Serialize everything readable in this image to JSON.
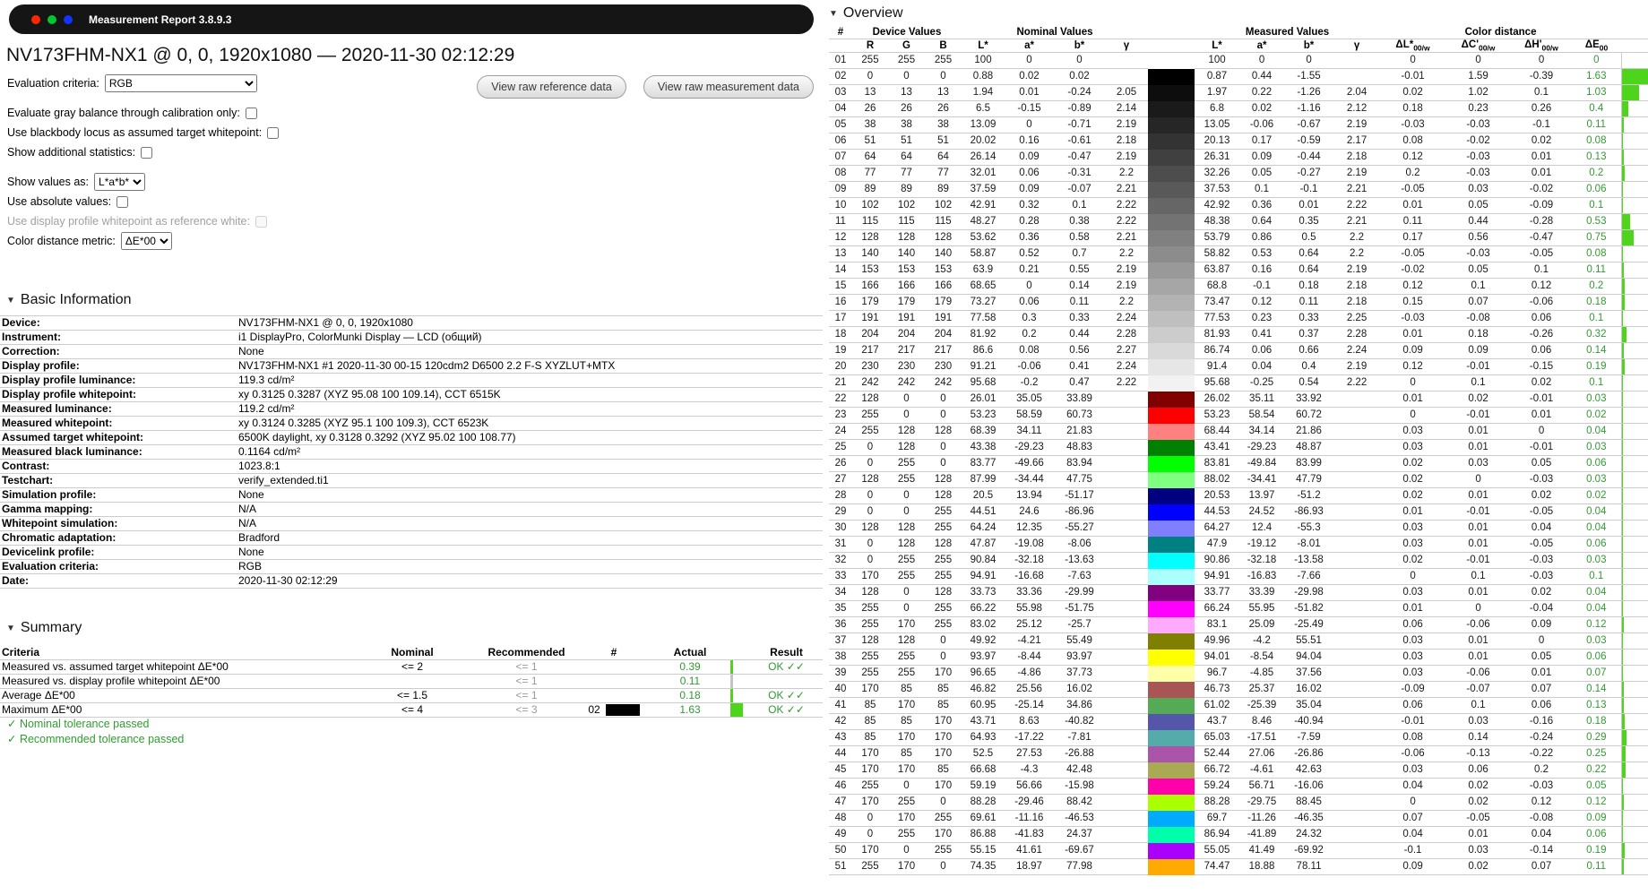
{
  "window": {
    "title": "Measurement Report 3.8.9.3"
  },
  "header": {
    "title": "NV173FHM-NX1 @ 0, 0, 1920x1080 — 2020-11-30 02:12:29"
  },
  "controls": {
    "evaluation_criteria_label": "Evaluation criteria:",
    "evaluation_criteria_value": "RGB",
    "buttons": [
      "View raw reference data",
      "View raw measurement data"
    ],
    "checkboxes": [
      {
        "label": "Evaluate gray balance through calibration only:",
        "checked": false,
        "disabled": false
      },
      {
        "label": "Use blackbody locus as assumed target whitepoint:",
        "checked": false,
        "disabled": false
      },
      {
        "label": "Show additional statistics:",
        "checked": false,
        "disabled": false
      },
      {
        "label": "Use absolute values:",
        "checked": false,
        "disabled": false
      },
      {
        "label": "Use display profile whitepoint as reference white:",
        "checked": false,
        "disabled": true
      }
    ],
    "show_values_as_label": "Show values as:",
    "show_values_as_value": "L*a*b*",
    "color_distance_metric_label": "Color distance metric:",
    "color_distance_metric_value": "ΔE*00"
  },
  "basic_information": {
    "title": "Basic Information",
    "rows": [
      {
        "label": "Device:",
        "value": "NV173FHM-NX1 @ 0, 0, 1920x1080"
      },
      {
        "label": "Instrument:",
        "value": "i1 DisplayPro, ColorMunki Display — LCD (общий)"
      },
      {
        "label": "Correction:",
        "value": "None"
      },
      {
        "label": "Display profile:",
        "value": "NV173FHM-NX1 #1 2020-11-30 00-15 120cdm2 D6500 2.2 F-S XYZLUT+MTX"
      },
      {
        "label": "Display profile luminance:",
        "value": "119.3 cd/m²"
      },
      {
        "label": "Display profile whitepoint:",
        "value": "xy 0.3125 0.3287 (XYZ 95.08 100 109.14), CCT 6515K"
      },
      {
        "label": "Measured luminance:",
        "value": "119.2 cd/m²"
      },
      {
        "label": "Measured whitepoint:",
        "value": "xy 0.3124 0.3285 (XYZ 95.1 100 109.3), CCT 6523K"
      },
      {
        "label": "Assumed target whitepoint:",
        "value": "6500K daylight, xy 0.3128 0.3292 (XYZ 95.02 100 108.77)"
      },
      {
        "label": "Measured black luminance:",
        "value": "0.1164 cd/m²"
      },
      {
        "label": "Contrast:",
        "value": "1023.8:1"
      },
      {
        "label": "Testchart:",
        "value": "verify_extended.ti1"
      },
      {
        "label": "Simulation profile:",
        "value": "None"
      },
      {
        "label": "Gamma mapping:",
        "value": "N/A"
      },
      {
        "label": "Whitepoint simulation:",
        "value": "N/A"
      },
      {
        "label": "Chromatic adaptation:",
        "value": "Bradford"
      },
      {
        "label": "Devicelink profile:",
        "value": "None"
      },
      {
        "label": "Evaluation criteria:",
        "value": "RGB"
      },
      {
        "label": "Date:",
        "value": "2020-11-30 02:12:29"
      }
    ]
  },
  "summary": {
    "title": "Summary",
    "headers": {
      "criteria": "Criteria",
      "nominal": "Nominal",
      "recommended": "Recommended",
      "num": "#",
      "actual": "Actual",
      "result": "Result"
    },
    "rows": [
      {
        "criteria": "Measured vs. assumed target whitepoint ΔE*00",
        "nominal": "<= 2",
        "recommended": "<= 1",
        "num": "",
        "patch": null,
        "actual": "0.39",
        "bar": "green",
        "result": "OK ✓✓"
      },
      {
        "criteria": "Measured vs. display profile whitepoint ΔE*00",
        "nominal": "",
        "recommended": "<= 1",
        "num": "",
        "patch": null,
        "actual": "0.11",
        "bar": "gray",
        "result": ""
      },
      {
        "criteria": "Average ΔE*00",
        "nominal": "<= 1.5",
        "recommended": "<= 1",
        "num": "",
        "patch": null,
        "actual": "0.18",
        "bar": "green",
        "result": "OK ✓✓"
      },
      {
        "criteria": "Maximum ΔE*00",
        "nominal": "<= 4",
        "recommended": "<= 3",
        "num": "02",
        "patch": "#000000",
        "actual": "1.63",
        "bar": "green",
        "result": "OK ✓✓"
      }
    ],
    "footnotes": [
      "✓ Nominal tolerance passed",
      "✓ Recommended tolerance passed"
    ]
  },
  "overview": {
    "title": "Overview",
    "group_headers": {
      "num": "#",
      "device": "Device Values",
      "nominal": "Nominal Values",
      "measured": "Measured Values",
      "distance": "Color distance"
    },
    "sub_labels": [
      "R",
      "G",
      "B",
      "L*",
      "a*",
      "b*",
      "γ"
    ],
    "delta_headers": [
      {
        "base": "ΔL*",
        "sub": "00/w"
      },
      {
        "base": "ΔC'",
        "sub": "00/w"
      },
      {
        "base": "ΔH'",
        "sub": "00/w"
      },
      {
        "base": "ΔE",
        "sub": "00"
      }
    ],
    "max_de": 1.63,
    "rows": [
      [
        "01",
        "255",
        "255",
        "255",
        "100",
        "0",
        "0",
        "",
        "100",
        "0",
        "0",
        "",
        "0",
        "0",
        "0",
        "0"
      ],
      [
        "02",
        "0",
        "0",
        "0",
        "0.88",
        "0.02",
        "0.02",
        "",
        "0.87",
        "0.44",
        "-1.55",
        "",
        "-0.01",
        "1.59",
        "-0.39",
        "1.63"
      ],
      [
        "03",
        "13",
        "13",
        "13",
        "1.94",
        "0.01",
        "-0.24",
        "2.05",
        "1.97",
        "0.22",
        "-1.26",
        "2.04",
        "0.02",
        "1.02",
        "0.1",
        "1.03"
      ],
      [
        "04",
        "26",
        "26",
        "26",
        "6.5",
        "-0.15",
        "-0.89",
        "2.14",
        "6.8",
        "0.02",
        "-1.16",
        "2.12",
        "0.18",
        "0.23",
        "0.26",
        "0.4"
      ],
      [
        "05",
        "38",
        "38",
        "38",
        "13.09",
        "0",
        "-0.71",
        "2.19",
        "13.05",
        "-0.06",
        "-0.67",
        "2.19",
        "-0.03",
        "-0.03",
        "-0.1",
        "0.11"
      ],
      [
        "06",
        "51",
        "51",
        "51",
        "20.02",
        "0.16",
        "-0.61",
        "2.18",
        "20.13",
        "0.17",
        "-0.59",
        "2.17",
        "0.08",
        "-0.02",
        "0.02",
        "0.08"
      ],
      [
        "07",
        "64",
        "64",
        "64",
        "26.14",
        "0.09",
        "-0.47",
        "2.19",
        "26.31",
        "0.09",
        "-0.44",
        "2.18",
        "0.12",
        "-0.03",
        "0.01",
        "0.13"
      ],
      [
        "08",
        "77",
        "77",
        "77",
        "32.01",
        "0.06",
        "-0.31",
        "2.2",
        "32.26",
        "0.05",
        "-0.27",
        "2.19",
        "0.2",
        "-0.03",
        "0.01",
        "0.2"
      ],
      [
        "09",
        "89",
        "89",
        "89",
        "37.59",
        "0.09",
        "-0.07",
        "2.21",
        "37.53",
        "0.1",
        "-0.1",
        "2.21",
        "-0.05",
        "0.03",
        "-0.02",
        "0.06"
      ],
      [
        "10",
        "102",
        "102",
        "102",
        "42.91",
        "0.32",
        "0.1",
        "2.22",
        "42.92",
        "0.36",
        "0.01",
        "2.22",
        "0.01",
        "0.05",
        "-0.09",
        "0.1"
      ],
      [
        "11",
        "115",
        "115",
        "115",
        "48.27",
        "0.28",
        "0.38",
        "2.22",
        "48.38",
        "0.64",
        "0.35",
        "2.21",
        "0.11",
        "0.44",
        "-0.28",
        "0.53"
      ],
      [
        "12",
        "128",
        "128",
        "128",
        "53.62",
        "0.36",
        "0.58",
        "2.21",
        "53.79",
        "0.86",
        "0.5",
        "2.2",
        "0.17",
        "0.56",
        "-0.47",
        "0.75"
      ],
      [
        "13",
        "140",
        "140",
        "140",
        "58.87",
        "0.52",
        "0.7",
        "2.2",
        "58.82",
        "0.53",
        "0.64",
        "2.2",
        "-0.05",
        "-0.03",
        "-0.05",
        "0.08"
      ],
      [
        "14",
        "153",
        "153",
        "153",
        "63.9",
        "0.21",
        "0.55",
        "2.19",
        "63.87",
        "0.16",
        "0.64",
        "2.19",
        "-0.02",
        "0.05",
        "0.1",
        "0.11"
      ],
      [
        "15",
        "166",
        "166",
        "166",
        "68.65",
        "0",
        "0.14",
        "2.19",
        "68.8",
        "-0.1",
        "0.18",
        "2.18",
        "0.12",
        "0.1",
        "0.12",
        "0.2"
      ],
      [
        "16",
        "179",
        "179",
        "179",
        "73.27",
        "0.06",
        "0.11",
        "2.2",
        "73.47",
        "0.12",
        "0.11",
        "2.18",
        "0.15",
        "0.07",
        "-0.06",
        "0.18"
      ],
      [
        "17",
        "191",
        "191",
        "191",
        "77.58",
        "0.3",
        "0.33",
        "2.24",
        "77.53",
        "0.23",
        "0.33",
        "2.25",
        "-0.03",
        "-0.08",
        "0.06",
        "0.1"
      ],
      [
        "18",
        "204",
        "204",
        "204",
        "81.92",
        "0.2",
        "0.44",
        "2.28",
        "81.93",
        "0.41",
        "0.37",
        "2.28",
        "0.01",
        "0.18",
        "-0.26",
        "0.32"
      ],
      [
        "19",
        "217",
        "217",
        "217",
        "86.6",
        "0.08",
        "0.56",
        "2.27",
        "86.74",
        "0.06",
        "0.66",
        "2.24",
        "0.09",
        "0.09",
        "0.06",
        "0.14"
      ],
      [
        "20",
        "230",
        "230",
        "230",
        "91.21",
        "-0.06",
        "0.41",
        "2.24",
        "91.4",
        "0.04",
        "0.4",
        "2.19",
        "0.12",
        "-0.01",
        "-0.15",
        "0.19"
      ],
      [
        "21",
        "242",
        "242",
        "242",
        "95.68",
        "-0.2",
        "0.47",
        "2.22",
        "95.68",
        "-0.25",
        "0.54",
        "2.22",
        "0",
        "0.1",
        "0.02",
        "0.1"
      ],
      [
        "22",
        "128",
        "0",
        "0",
        "26.01",
        "35.05",
        "33.89",
        "",
        "26.02",
        "35.11",
        "33.92",
        "",
        "0.01",
        "0.02",
        "-0.01",
        "0.03"
      ],
      [
        "23",
        "255",
        "0",
        "0",
        "53.23",
        "58.59",
        "60.73",
        "",
        "53.23",
        "58.54",
        "60.72",
        "",
        "0",
        "-0.01",
        "0.01",
        "0.02"
      ],
      [
        "24",
        "255",
        "128",
        "128",
        "68.39",
        "34.11",
        "21.83",
        "",
        "68.44",
        "34.14",
        "21.86",
        "",
        "0.03",
        "0.01",
        "0",
        "0.04"
      ],
      [
        "25",
        "0",
        "128",
        "0",
        "43.38",
        "-29.23",
        "48.83",
        "",
        "43.41",
        "-29.23",
        "48.87",
        "",
        "0.03",
        "0.01",
        "-0.01",
        "0.03"
      ],
      [
        "26",
        "0",
        "255",
        "0",
        "83.77",
        "-49.66",
        "83.94",
        "",
        "83.81",
        "-49.84",
        "83.99",
        "",
        "0.02",
        "0.03",
        "0.05",
        "0.06"
      ],
      [
        "27",
        "128",
        "255",
        "128",
        "87.99",
        "-34.44",
        "47.75",
        "",
        "88.02",
        "-34.41",
        "47.79",
        "",
        "0.02",
        "0",
        "-0.03",
        "0.03"
      ],
      [
        "28",
        "0",
        "0",
        "128",
        "20.5",
        "13.94",
        "-51.17",
        "",
        "20.53",
        "13.97",
        "-51.2",
        "",
        "0.02",
        "0.01",
        "0.02",
        "0.02"
      ],
      [
        "29",
        "0",
        "0",
        "255",
        "44.51",
        "24.6",
        "-86.96",
        "",
        "44.53",
        "24.52",
        "-86.93",
        "",
        "0.01",
        "-0.01",
        "-0.05",
        "0.04"
      ],
      [
        "30",
        "128",
        "128",
        "255",
        "64.24",
        "12.35",
        "-55.27",
        "",
        "64.27",
        "12.4",
        "-55.3",
        "",
        "0.03",
        "0.01",
        "0.04",
        "0.04"
      ],
      [
        "31",
        "0",
        "128",
        "128",
        "47.87",
        "-19.08",
        "-8.06",
        "",
        "47.9",
        "-19.12",
        "-8.01",
        "",
        "0.03",
        "0.01",
        "-0.05",
        "0.06"
      ],
      [
        "32",
        "0",
        "255",
        "255",
        "90.84",
        "-32.18",
        "-13.63",
        "",
        "90.86",
        "-32.18",
        "-13.58",
        "",
        "0.02",
        "-0.01",
        "-0.03",
        "0.03"
      ],
      [
        "33",
        "170",
        "255",
        "255",
        "94.91",
        "-16.68",
        "-7.63",
        "",
        "94.91",
        "-16.83",
        "-7.66",
        "",
        "0",
        "0.1",
        "-0.03",
        "0.1"
      ],
      [
        "34",
        "128",
        "0",
        "128",
        "33.73",
        "33.36",
        "-29.99",
        "",
        "33.77",
        "33.39",
        "-29.98",
        "",
        "0.03",
        "0.01",
        "0.02",
        "0.04"
      ],
      [
        "35",
        "255",
        "0",
        "255",
        "66.22",
        "55.98",
        "-51.75",
        "",
        "66.24",
        "55.95",
        "-51.82",
        "",
        "0.01",
        "0",
        "-0.04",
        "0.04"
      ],
      [
        "36",
        "255",
        "170",
        "255",
        "83.02",
        "25.12",
        "-25.7",
        "",
        "83.1",
        "25.09",
        "-25.49",
        "",
        "0.06",
        "-0.06",
        "0.09",
        "0.12"
      ],
      [
        "37",
        "128",
        "128",
        "0",
        "49.92",
        "-4.21",
        "55.49",
        "",
        "49.96",
        "-4.2",
        "55.51",
        "",
        "0.03",
        "0.01",
        "0",
        "0.03"
      ],
      [
        "38",
        "255",
        "255",
        "0",
        "93.97",
        "-8.44",
        "93.97",
        "",
        "94.01",
        "-8.54",
        "94.04",
        "",
        "0.03",
        "0.01",
        "0.05",
        "0.06"
      ],
      [
        "39",
        "255",
        "255",
        "170",
        "96.65",
        "-4.86",
        "37.73",
        "",
        "96.7",
        "-4.85",
        "37.56",
        "",
        "0.03",
        "-0.06",
        "0.01",
        "0.07"
      ],
      [
        "40",
        "170",
        "85",
        "85",
        "46.82",
        "25.56",
        "16.02",
        "",
        "46.73",
        "25.37",
        "16.02",
        "",
        "-0.09",
        "-0.07",
        "0.07",
        "0.14"
      ],
      [
        "41",
        "85",
        "170",
        "85",
        "60.95",
        "-25.14",
        "34.86",
        "",
        "61.02",
        "-25.39",
        "35.04",
        "",
        "0.06",
        "0.1",
        "0.06",
        "0.13"
      ],
      [
        "42",
        "85",
        "85",
        "170",
        "43.71",
        "8.63",
        "-40.82",
        "",
        "43.7",
        "8.46",
        "-40.94",
        "",
        "-0.01",
        "0.03",
        "-0.16",
        "0.18"
      ],
      [
        "43",
        "85",
        "170",
        "170",
        "64.93",
        "-17.22",
        "-7.81",
        "",
        "65.03",
        "-17.51",
        "-7.59",
        "",
        "0.08",
        "0.14",
        "-0.24",
        "0.29"
      ],
      [
        "44",
        "170",
        "85",
        "170",
        "52.5",
        "27.53",
        "-26.88",
        "",
        "52.44",
        "27.06",
        "-26.86",
        "",
        "-0.06",
        "-0.13",
        "-0.22",
        "0.25"
      ],
      [
        "45",
        "170",
        "170",
        "85",
        "66.68",
        "-4.3",
        "42.48",
        "",
        "66.72",
        "-4.61",
        "42.63",
        "",
        "0.03",
        "0.06",
        "0.2",
        "0.22"
      ],
      [
        "46",
        "255",
        "0",
        "170",
        "59.19",
        "56.66",
        "-15.98",
        "",
        "59.24",
        "56.71",
        "-16.06",
        "",
        "0.04",
        "0.02",
        "-0.03",
        "0.05"
      ],
      [
        "47",
        "170",
        "255",
        "0",
        "88.28",
        "-29.46",
        "88.42",
        "",
        "88.28",
        "-29.75",
        "88.45",
        "",
        "0",
        "0.02",
        "0.12",
        "0.12"
      ],
      [
        "48",
        "0",
        "170",
        "255",
        "69.61",
        "-11.16",
        "-46.53",
        "",
        "69.7",
        "-11.26",
        "-46.35",
        "",
        "0.07",
        "-0.05",
        "-0.08",
        "0.09"
      ],
      [
        "49",
        "0",
        "255",
        "170",
        "86.88",
        "-41.83",
        "24.37",
        "",
        "86.94",
        "-41.89",
        "24.32",
        "",
        "0.04",
        "0.01",
        "0.04",
        "0.06"
      ],
      [
        "50",
        "170",
        "0",
        "255",
        "55.15",
        "41.61",
        "-69.67",
        "",
        "55.05",
        "41.49",
        "-69.92",
        "",
        "-0.1",
        "0.03",
        "-0.14",
        "0.19"
      ],
      [
        "51",
        "255",
        "170",
        "0",
        "74.35",
        "18.97",
        "77.98",
        "",
        "74.47",
        "18.88",
        "78.11",
        "",
        "0.09",
        "0.02",
        "0.07",
        "0.11"
      ]
    ]
  },
  "colors": {
    "pass_green": "#339933",
    "bar_green": "#4ed41a",
    "bar_gray": "#c4c4c4",
    "black_patch": "#000000"
  }
}
